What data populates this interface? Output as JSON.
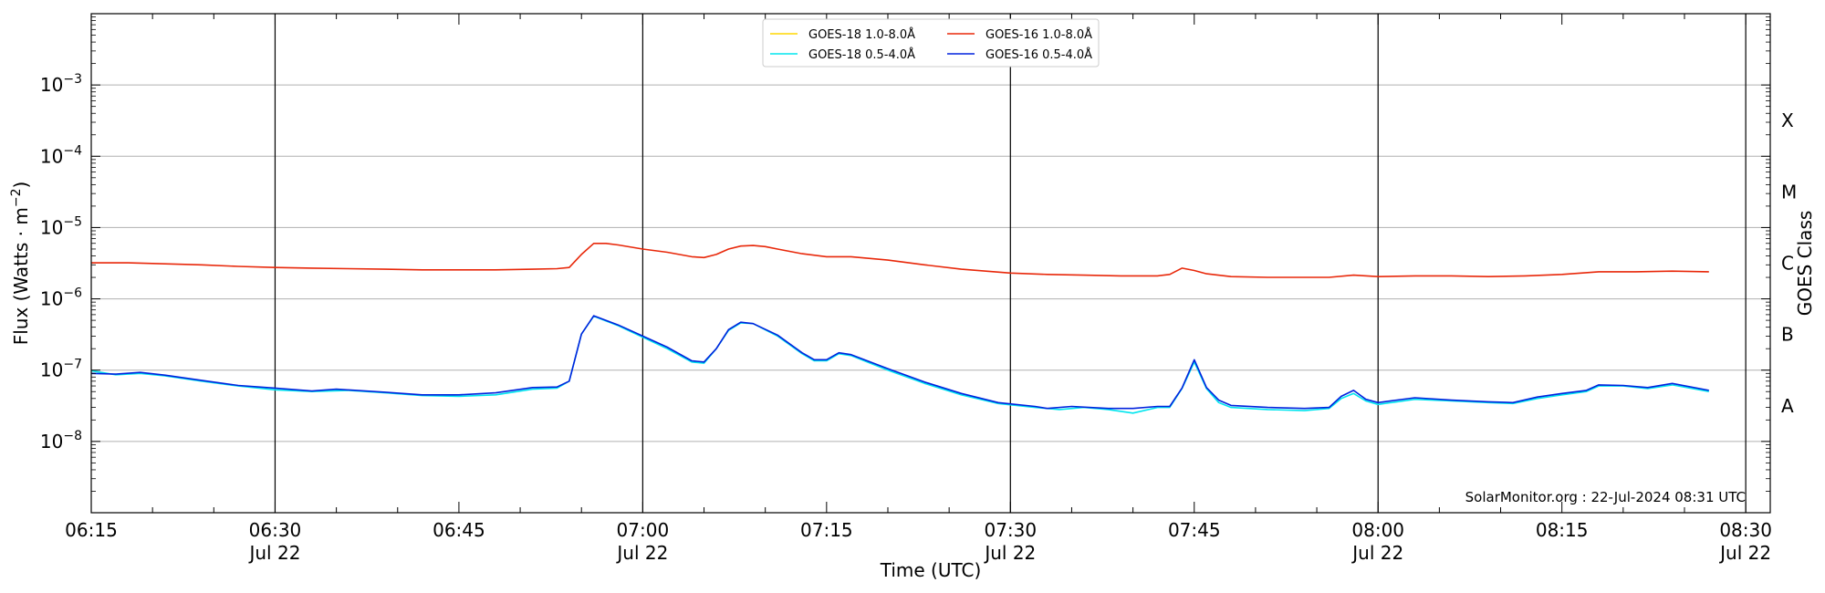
{
  "chart_data": {
    "type": "line",
    "title": "",
    "xlabel": "Time (UTC)",
    "ylabel": "Flux (Watts · m",
    "ylabel_sup": "−2",
    "ylabel_close": ")",
    "right_label": "GOES Class",
    "y_scale": "log",
    "ylim": [
      1e-09,
      0.01
    ],
    "xlim": [
      "06:15",
      "08:32"
    ],
    "grid": {
      "horizontal": true
    },
    "y_ticks": [
      {
        "exp": -8,
        "base": "10",
        "sup": "−8"
      },
      {
        "exp": -7,
        "base": "10",
        "sup": "−7"
      },
      {
        "exp": -6,
        "base": "10",
        "sup": "−6"
      },
      {
        "exp": -5,
        "base": "10",
        "sup": "−5"
      },
      {
        "exp": -4,
        "base": "10",
        "sup": "−4"
      },
      {
        "exp": -3,
        "base": "10",
        "sup": "−3"
      }
    ],
    "goes_classes": [
      {
        "label": "A",
        "exp": -7.5
      },
      {
        "label": "B",
        "exp": -6.5
      },
      {
        "label": "C",
        "exp": -5.5
      },
      {
        "label": "M",
        "exp": -4.5
      },
      {
        "label": "X",
        "exp": -3.5
      }
    ],
    "x_ticks": [
      {
        "time": "06:15",
        "label": "06:15",
        "date": ""
      },
      {
        "time": "06:30",
        "label": "06:30",
        "date": "Jul 22"
      },
      {
        "time": "06:45",
        "label": "06:45",
        "date": ""
      },
      {
        "time": "07:00",
        "label": "07:00",
        "date": "Jul 22"
      },
      {
        "time": "07:15",
        "label": "07:15",
        "date": ""
      },
      {
        "time": "07:30",
        "label": "07:30",
        "date": "Jul 22"
      },
      {
        "time": "07:45",
        "label": "07:45",
        "date": ""
      },
      {
        "time": "08:00",
        "label": "08:00",
        "date": "Jul 22"
      },
      {
        "time": "08:15",
        "label": "08:15",
        "date": ""
      },
      {
        "time": "08:30",
        "label": "08:30",
        "date": "Jul 22"
      }
    ],
    "vertical_lines": [
      "06:30",
      "07:00",
      "07:30",
      "08:00",
      "08:30"
    ],
    "legend": {
      "placement": "top-center",
      "columns": 2
    },
    "credit": "SolarMonitor.org : 22-Jul-2024 08:31 UTC",
    "series": [
      {
        "name": "GOES-18 1.0-8.0Å",
        "color": "#ffd700",
        "points": []
      },
      {
        "name": "GOES-16 1.0-8.0Å",
        "color": "#e8280a",
        "points": [
          [
            "06:15",
            3.2e-06
          ],
          [
            "06:18",
            3.2e-06
          ],
          [
            "06:21",
            3.1e-06
          ],
          [
            "06:24",
            3e-06
          ],
          [
            "06:27",
            2.85e-06
          ],
          [
            "06:30",
            2.75e-06
          ],
          [
            "06:33",
            2.7e-06
          ],
          [
            "06:36",
            2.65e-06
          ],
          [
            "06:39",
            2.6e-06
          ],
          [
            "06:42",
            2.55e-06
          ],
          [
            "06:45",
            2.55e-06
          ],
          [
            "06:48",
            2.55e-06
          ],
          [
            "06:51",
            2.6e-06
          ],
          [
            "06:53",
            2.65e-06
          ],
          [
            "06:54",
            2.75e-06
          ],
          [
            "06:55",
            4.2e-06
          ],
          [
            "06:56",
            6e-06
          ],
          [
            "06:57",
            6e-06
          ],
          [
            "06:58",
            5.7e-06
          ],
          [
            "07:00",
            5e-06
          ],
          [
            "07:02",
            4.5e-06
          ],
          [
            "07:04",
            3.9e-06
          ],
          [
            "07:05",
            3.8e-06
          ],
          [
            "07:06",
            4.2e-06
          ],
          [
            "07:07",
            5e-06
          ],
          [
            "07:08",
            5.5e-06
          ],
          [
            "07:09",
            5.6e-06
          ],
          [
            "07:10",
            5.4e-06
          ],
          [
            "07:11",
            5e-06
          ],
          [
            "07:13",
            4.3e-06
          ],
          [
            "07:15",
            3.9e-06
          ],
          [
            "07:17",
            3.9e-06
          ],
          [
            "07:20",
            3.5e-06
          ],
          [
            "07:23",
            3e-06
          ],
          [
            "07:26",
            2.6e-06
          ],
          [
            "07:30",
            2.3e-06
          ],
          [
            "07:33",
            2.2e-06
          ],
          [
            "07:36",
            2.15e-06
          ],
          [
            "07:39",
            2.1e-06
          ],
          [
            "07:42",
            2.1e-06
          ],
          [
            "07:43",
            2.2e-06
          ],
          [
            "07:44",
            2.7e-06
          ],
          [
            "07:45",
            2.5e-06
          ],
          [
            "07:46",
            2.25e-06
          ],
          [
            "07:48",
            2.05e-06
          ],
          [
            "07:51",
            2e-06
          ],
          [
            "07:54",
            2e-06
          ],
          [
            "07:56",
            2e-06
          ],
          [
            "07:58",
            2.15e-06
          ],
          [
            "08:00",
            2.05e-06
          ],
          [
            "08:03",
            2.1e-06
          ],
          [
            "08:06",
            2.1e-06
          ],
          [
            "08:09",
            2.05e-06
          ],
          [
            "08:12",
            2.1e-06
          ],
          [
            "08:15",
            2.2e-06
          ],
          [
            "08:18",
            2.4e-06
          ],
          [
            "08:21",
            2.4e-06
          ],
          [
            "08:24",
            2.45e-06
          ],
          [
            "08:27",
            2.4e-06
          ]
        ]
      },
      {
        "name": "GOES-18 0.5-4.0Å",
        "color": "#00e5ee",
        "points": [
          [
            "06:15",
            9.8e-08
          ],
          [
            "06:17",
            8.6e-08
          ],
          [
            "06:19",
            9e-08
          ],
          [
            "06:21",
            8.3e-08
          ],
          [
            "06:24",
            7e-08
          ],
          [
            "06:27",
            6e-08
          ],
          [
            "06:30",
            5.3e-08
          ],
          [
            "06:33",
            5e-08
          ],
          [
            "06:36",
            5.2e-08
          ],
          [
            "06:39",
            4.8e-08
          ],
          [
            "06:42",
            4.4e-08
          ],
          [
            "06:45",
            4.3e-08
          ],
          [
            "06:48",
            4.5e-08
          ],
          [
            "06:51",
            5.4e-08
          ],
          [
            "06:53",
            5.6e-08
          ],
          [
            "06:54",
            7e-08
          ],
          [
            "06:55",
            3.2e-07
          ],
          [
            "06:56",
            5.7e-07
          ],
          [
            "06:58",
            4.2e-07
          ],
          [
            "07:00",
            2.9e-07
          ],
          [
            "07:02",
            2e-07
          ],
          [
            "07:04",
            1.3e-07
          ],
          [
            "07:05",
            1.25e-07
          ],
          [
            "07:06",
            2e-07
          ],
          [
            "07:07",
            3.6e-07
          ],
          [
            "07:08",
            4.6e-07
          ],
          [
            "07:09",
            4.5e-07
          ],
          [
            "07:11",
            3e-07
          ],
          [
            "07:13",
            1.7e-07
          ],
          [
            "07:14",
            1.35e-07
          ],
          [
            "07:15",
            1.35e-07
          ],
          [
            "07:16",
            1.7e-07
          ],
          [
            "07:17",
            1.6e-07
          ],
          [
            "07:20",
            1e-07
          ],
          [
            "07:23",
            6.5e-08
          ],
          [
            "07:26",
            4.5e-08
          ],
          [
            "07:29",
            3.4e-08
          ],
          [
            "07:32",
            3e-08
          ],
          [
            "07:34",
            2.8e-08
          ],
          [
            "07:36",
            3e-08
          ],
          [
            "07:38",
            2.8e-08
          ],
          [
            "07:40",
            2.5e-08
          ],
          [
            "07:42",
            3e-08
          ],
          [
            "07:43",
            3e-08
          ],
          [
            "07:44",
            5.5e-08
          ],
          [
            "07:45",
            1.3e-07
          ],
          [
            "07:46",
            5.5e-08
          ],
          [
            "07:47",
            3.5e-08
          ],
          [
            "07:48",
            3e-08
          ],
          [
            "07:51",
            2.8e-08
          ],
          [
            "07:54",
            2.7e-08
          ],
          [
            "07:56",
            2.9e-08
          ],
          [
            "07:57",
            4e-08
          ],
          [
            "07:58",
            4.7e-08
          ],
          [
            "07:59",
            3.7e-08
          ],
          [
            "08:00",
            3.3e-08
          ],
          [
            "08:03",
            3.9e-08
          ],
          [
            "08:06",
            3.7e-08
          ],
          [
            "08:09",
            3.5e-08
          ],
          [
            "08:11",
            3.4e-08
          ],
          [
            "08:13",
            4e-08
          ],
          [
            "08:15",
            4.5e-08
          ],
          [
            "08:17",
            5e-08
          ],
          [
            "08:18",
            6e-08
          ],
          [
            "08:20",
            6e-08
          ],
          [
            "08:22",
            5.5e-08
          ],
          [
            "08:24",
            6.2e-08
          ],
          [
            "08:27",
            5e-08
          ]
        ]
      },
      {
        "name": "GOES-16 0.5-4.0Å",
        "color": "#0022dd",
        "points": [
          [
            "06:15",
            9e-08
          ],
          [
            "06:17",
            8.8e-08
          ],
          [
            "06:19",
            9.3e-08
          ],
          [
            "06:21",
            8.5e-08
          ],
          [
            "06:24",
            7.2e-08
          ],
          [
            "06:27",
            6.1e-08
          ],
          [
            "06:30",
            5.6e-08
          ],
          [
            "06:33",
            5.1e-08
          ],
          [
            "06:35",
            5.4e-08
          ],
          [
            "06:39",
            4.9e-08
          ],
          [
            "06:42",
            4.5e-08
          ],
          [
            "06:45",
            4.5e-08
          ],
          [
            "06:48",
            4.8e-08
          ],
          [
            "06:51",
            5.7e-08
          ],
          [
            "06:53",
            5.8e-08
          ],
          [
            "06:54",
            7e-08
          ],
          [
            "06:55",
            3.2e-07
          ],
          [
            "06:56",
            5.8e-07
          ],
          [
            "06:58",
            4.3e-07
          ],
          [
            "07:00",
            3e-07
          ],
          [
            "07:02",
            2.1e-07
          ],
          [
            "07:04",
            1.35e-07
          ],
          [
            "07:05",
            1.3e-07
          ],
          [
            "07:06",
            2e-07
          ],
          [
            "07:07",
            3.7e-07
          ],
          [
            "07:08",
            4.7e-07
          ],
          [
            "07:09",
            4.5e-07
          ],
          [
            "07:11",
            3.1e-07
          ],
          [
            "07:13",
            1.75e-07
          ],
          [
            "07:14",
            1.4e-07
          ],
          [
            "07:15",
            1.4e-07
          ],
          [
            "07:16",
            1.75e-07
          ],
          [
            "07:17",
            1.65e-07
          ],
          [
            "07:20",
            1.05e-07
          ],
          [
            "07:23",
            6.8e-08
          ],
          [
            "07:26",
            4.7e-08
          ],
          [
            "07:29",
            3.5e-08
          ],
          [
            "07:32",
            3.1e-08
          ],
          [
            "07:33",
            2.9e-08
          ],
          [
            "07:35",
            3.1e-08
          ],
          [
            "07:38",
            2.9e-08
          ],
          [
            "07:40",
            2.9e-08
          ],
          [
            "07:42",
            3.1e-08
          ],
          [
            "07:43",
            3.1e-08
          ],
          [
            "07:44",
            5.6e-08
          ],
          [
            "07:45",
            1.4e-07
          ],
          [
            "07:46",
            5.7e-08
          ],
          [
            "07:47",
            3.8e-08
          ],
          [
            "07:48",
            3.2e-08
          ],
          [
            "07:51",
            3e-08
          ],
          [
            "07:54",
            2.9e-08
          ],
          [
            "07:56",
            3e-08
          ],
          [
            "07:57",
            4.3e-08
          ],
          [
            "07:58",
            5.2e-08
          ],
          [
            "07:59",
            3.9e-08
          ],
          [
            "08:00",
            3.5e-08
          ],
          [
            "08:03",
            4.1e-08
          ],
          [
            "08:06",
            3.8e-08
          ],
          [
            "08:09",
            3.6e-08
          ],
          [
            "08:11",
            3.5e-08
          ],
          [
            "08:13",
            4.2e-08
          ],
          [
            "08:15",
            4.7e-08
          ],
          [
            "08:17",
            5.2e-08
          ],
          [
            "08:18",
            6.2e-08
          ],
          [
            "08:20",
            6.1e-08
          ],
          [
            "08:22",
            5.7e-08
          ],
          [
            "08:24",
            6.5e-08
          ],
          [
            "08:27",
            5.2e-08
          ]
        ]
      }
    ]
  }
}
